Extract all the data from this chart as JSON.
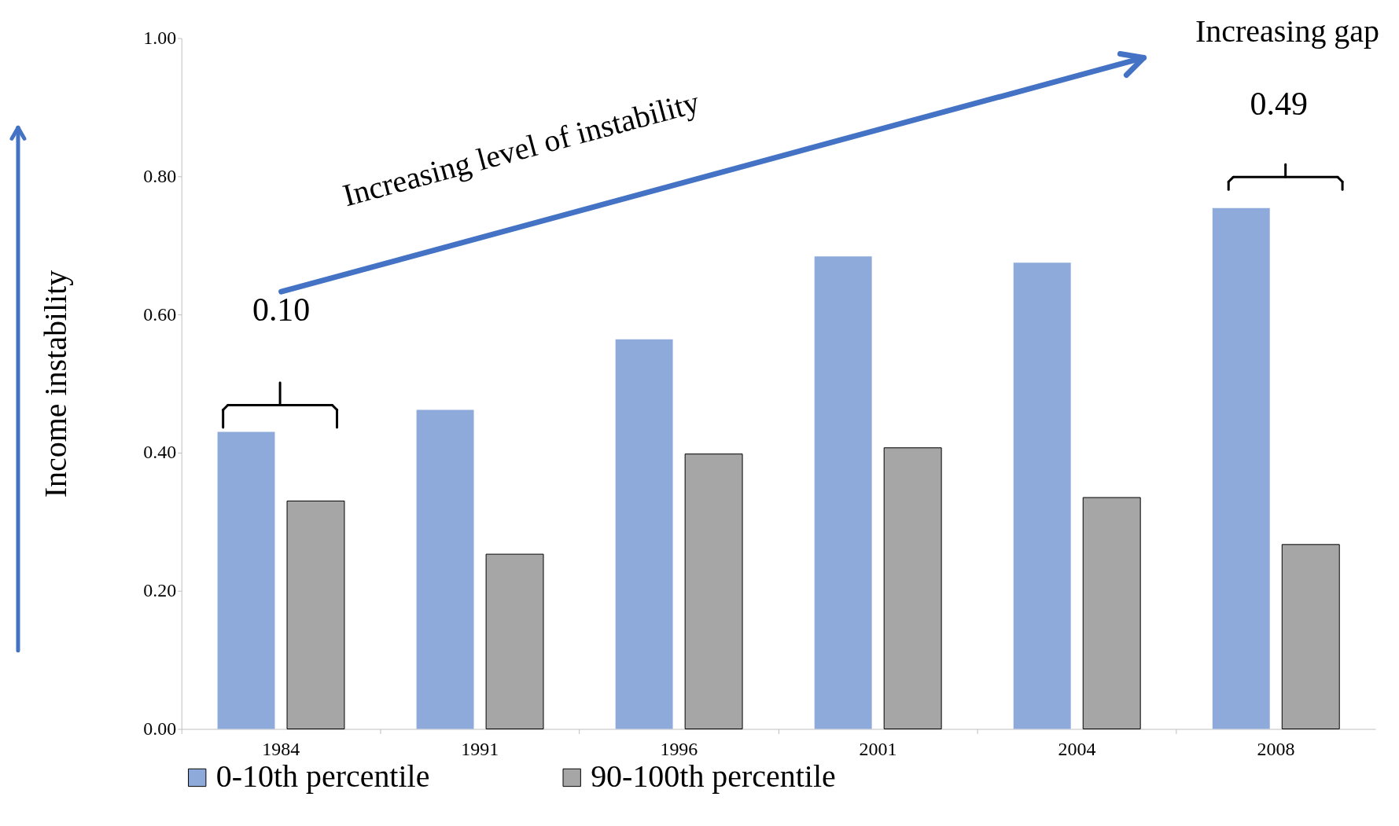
{
  "chart_data": {
    "type": "bar",
    "ylabel": "Income instability",
    "categories": [
      "1984",
      "1991",
      "1996",
      "2001",
      "2004",
      "2008"
    ],
    "series": [
      {
        "name": "0-10th percentile",
        "color": "#8eaadb",
        "values": [
          0.43,
          0.462,
          0.564,
          0.684,
          0.675,
          0.754
        ]
      },
      {
        "name": "90-100th percentile",
        "color": "#a6a6a6",
        "values": [
          0.33,
          0.253,
          0.398,
          0.407,
          0.335,
          0.267
        ]
      }
    ],
    "ylim": [
      0,
      1
    ],
    "yticks": [
      {
        "value": 0,
        "label": "0.00"
      },
      {
        "value": 0.2,
        "label": "0.20"
      },
      {
        "value": 0.4,
        "label": "0.40"
      },
      {
        "value": 0.6,
        "label": "0.60"
      },
      {
        "value": 0.8,
        "label": "0.80"
      },
      {
        "value": 1,
        "label": "1.00"
      }
    ],
    "annotations": [
      "Increasing gap",
      "Increasing level of instability",
      "0.10",
      "0.49"
    ],
    "grid": false,
    "legend": "bottom"
  }
}
